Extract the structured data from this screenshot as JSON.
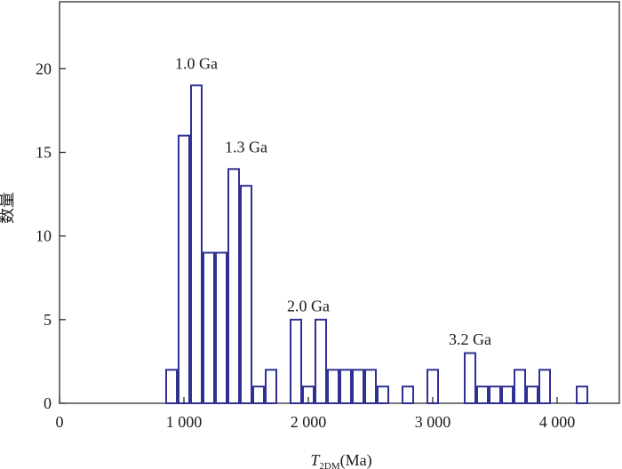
{
  "chart_data": {
    "type": "bar",
    "title": "",
    "ylabel": "数量",
    "xlabel": {
      "main": "T",
      "sub": "2DM",
      "unit": "(Ma)"
    },
    "xlim": [
      0,
      4500
    ],
    "ylim": [
      0,
      24
    ],
    "bin_width": 100,
    "grid": false,
    "legend": "none",
    "bar_color": "#2e3192",
    "x_ticks": [
      {
        "value": 0,
        "label": "0"
      },
      {
        "value": 1000,
        "label": "1 000"
      },
      {
        "value": 2000,
        "label": "2 000"
      },
      {
        "value": 3000,
        "label": "3 000"
      },
      {
        "value": 4000,
        "label": "4 000"
      }
    ],
    "y_ticks": [
      {
        "value": 0,
        "label": "0"
      },
      {
        "value": 5,
        "label": "5"
      },
      {
        "value": 10,
        "label": "10"
      },
      {
        "value": 15,
        "label": "15"
      },
      {
        "value": 20,
        "label": "20"
      }
    ],
    "bars": [
      {
        "x": 900,
        "count": 2
      },
      {
        "x": 1000,
        "count": 16
      },
      {
        "x": 1100,
        "count": 19
      },
      {
        "x": 1200,
        "count": 9
      },
      {
        "x": 1300,
        "count": 9
      },
      {
        "x": 1400,
        "count": 14
      },
      {
        "x": 1500,
        "count": 13
      },
      {
        "x": 1600,
        "count": 1
      },
      {
        "x": 1700,
        "count": 2
      },
      {
        "x": 1900,
        "count": 5
      },
      {
        "x": 2000,
        "count": 1
      },
      {
        "x": 2100,
        "count": 5
      },
      {
        "x": 2200,
        "count": 2
      },
      {
        "x": 2300,
        "count": 2
      },
      {
        "x": 2400,
        "count": 2
      },
      {
        "x": 2500,
        "count": 2
      },
      {
        "x": 2600,
        "count": 1
      },
      {
        "x": 2800,
        "count": 1
      },
      {
        "x": 3000,
        "count": 2
      },
      {
        "x": 3300,
        "count": 3
      },
      {
        "x": 3400,
        "count": 1
      },
      {
        "x": 3500,
        "count": 1
      },
      {
        "x": 3600,
        "count": 1
      },
      {
        "x": 3700,
        "count": 2
      },
      {
        "x": 3800,
        "count": 1
      },
      {
        "x": 3900,
        "count": 2
      },
      {
        "x": 4200,
        "count": 1
      }
    ],
    "annotations": [
      {
        "text": "1.0 Ga",
        "x": 1100,
        "y": 20
      },
      {
        "text": "1.3 Ga",
        "x": 1500,
        "y": 15
      },
      {
        "text": "2.0 Ga",
        "x": 2000,
        "y": 5.5
      },
      {
        "text": "3.2 Ga",
        "x": 3300,
        "y": 3.5
      }
    ]
  }
}
